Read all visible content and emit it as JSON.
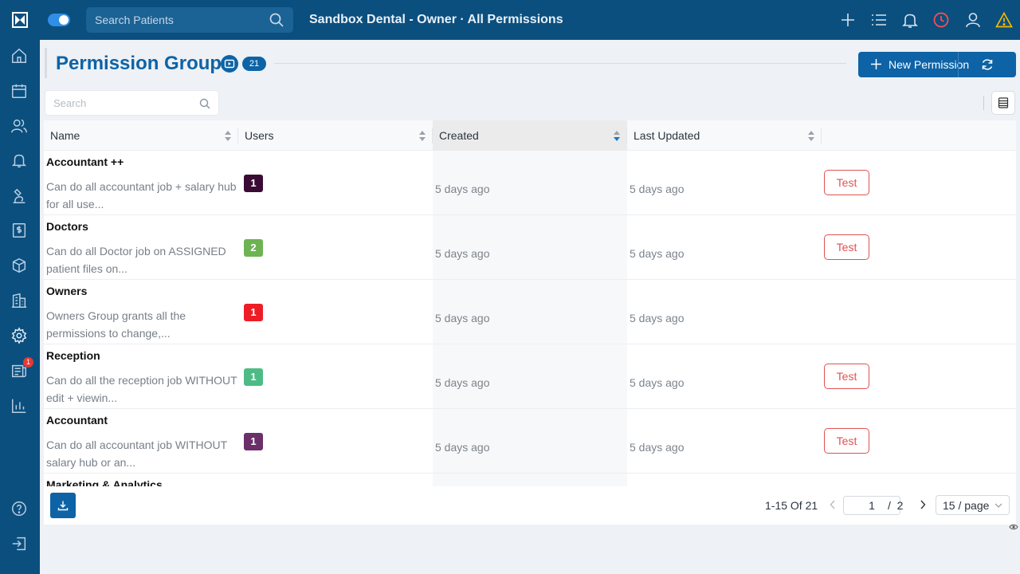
{
  "topbar": {
    "search_placeholder": "Search Patients",
    "title": "Sandbox Dental - Owner · All Permissions",
    "icons": [
      "plus-icon",
      "list-icon",
      "bell-icon",
      "clock-icon",
      "user-icon",
      "warning-icon"
    ]
  },
  "sidebar": {
    "items": [
      "home-icon",
      "calendar-icon",
      "users-icon",
      "bell-icon",
      "microscope-icon",
      "billing-icon",
      "box-icon",
      "building-icon",
      "gear-icon",
      "claims-icon",
      "chart-icon"
    ],
    "claims_badge": "1",
    "bottom": [
      "help-icon",
      "logout-icon"
    ]
  },
  "header": {
    "title": "Permission Groups",
    "count": "21",
    "new_button": "New Permission"
  },
  "filter": {
    "search_placeholder": "Search"
  },
  "table": {
    "columns": [
      "Name",
      "Users",
      "Created",
      "Last Updated"
    ],
    "rows": [
      {
        "name": "Accountant ++",
        "desc": "Can do all accountant job + salary hub for all use...",
        "users": "1",
        "badge_color": "#3a0b35",
        "created": "5 days ago",
        "updated": "5 days ago",
        "action": "Test"
      },
      {
        "name": "Doctors",
        "desc": "Can do all Doctor job on ASSIGNED patient files on...",
        "users": "2",
        "badge_color": "#6db352",
        "created": "5 days ago",
        "updated": "5 days ago",
        "action": "Test"
      },
      {
        "name": "Owners",
        "desc": "Owners Group grants all the permissions to change,...",
        "users": "1",
        "badge_color": "#ee1c25",
        "created": "5 days ago",
        "updated": "5 days ago",
        "action": ""
      },
      {
        "name": "Reception",
        "desc": "Can do all the reception job WITHOUT edit + viewin...",
        "users": "1",
        "badge_color": "#4dbb85",
        "created": "5 days ago",
        "updated": "5 days ago",
        "action": "Test"
      },
      {
        "name": "Accountant",
        "desc": "Can do all accountant job WITHOUT salary hub or an...",
        "users": "1",
        "badge_color": "#6b2f6a",
        "created": "5 days ago",
        "updated": "5 days ago",
        "action": "Test"
      },
      {
        "name": "Marketing & Analytics",
        "desc": "",
        "users": "",
        "badge_color": "",
        "created": "",
        "updated": "",
        "action": ""
      }
    ]
  },
  "pagination": {
    "range": "1-15 Of 21",
    "current_page": "1",
    "total": "/  2",
    "page_size": "15 / page"
  },
  "colors": {
    "brand": "#0b4f7e",
    "accent": "#0d63a6",
    "danger": "#e05252"
  }
}
